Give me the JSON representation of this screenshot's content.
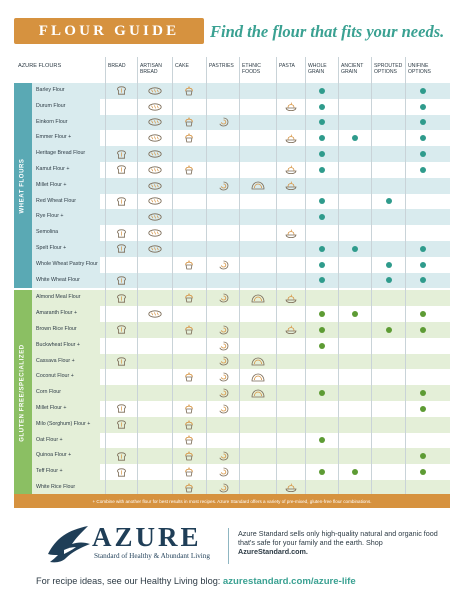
{
  "header": {
    "title": "FLOUR GUIDE",
    "tagline": "Find the flour that fits your needs."
  },
  "table": {
    "first_column_header": "AZURE FLOURS",
    "columns": [
      "BREAD",
      "ARTISAN BREAD",
      "CAKE",
      "PASTRIES",
      "ETHNIC FOODS",
      "PASTA",
      "WHOLE GRAIN",
      "ANCIENT GRAIN",
      "SPROUTED OPTIONS",
      "UNIFINE OPTIONS"
    ],
    "groups": [
      {
        "label": "WHEAT FLOURS",
        "color": "#5aa9b4",
        "band": "#d9ebee",
        "dot": "#2f9b8c",
        "rows": [
          {
            "name": "Barley Flour",
            "marks": [
              1,
              1,
              1,
              0,
              0,
              0,
              1,
              0,
              0,
              1
            ]
          },
          {
            "name": "Durum Flour",
            "marks": [
              0,
              1,
              0,
              0,
              0,
              1,
              1,
              0,
              0,
              1
            ]
          },
          {
            "name": "Einkorn Flour",
            "marks": [
              0,
              1,
              1,
              1,
              0,
              0,
              1,
              0,
              0,
              1
            ]
          },
          {
            "name": "Emmer Flour +",
            "marks": [
              0,
              1,
              1,
              0,
              0,
              1,
              1,
              1,
              0,
              1
            ]
          },
          {
            "name": "Heritage Bread Flour",
            "marks": [
              1,
              1,
              0,
              0,
              0,
              0,
              1,
              0,
              0,
              1
            ]
          },
          {
            "name": "Kamut Flour +",
            "marks": [
              1,
              1,
              1,
              0,
              0,
              1,
              1,
              0,
              0,
              1
            ]
          },
          {
            "name": "Millet Flour +",
            "marks": [
              0,
              1,
              0,
              1,
              1,
              1,
              0,
              0,
              0,
              0
            ]
          },
          {
            "name": "Red Wheat Flour",
            "marks": [
              1,
              1,
              0,
              0,
              0,
              0,
              1,
              0,
              1,
              0
            ]
          },
          {
            "name": "Rye Flour +",
            "marks": [
              0,
              1,
              0,
              0,
              0,
              0,
              1,
              0,
              0,
              0
            ]
          },
          {
            "name": "Semolina",
            "marks": [
              1,
              1,
              0,
              0,
              0,
              1,
              0,
              0,
              0,
              0
            ]
          },
          {
            "name": "Spelt Flour +",
            "marks": [
              1,
              1,
              0,
              0,
              0,
              0,
              1,
              1,
              0,
              1
            ]
          },
          {
            "name": "Whole Wheat Pastry Flour",
            "marks": [
              0,
              0,
              1,
              1,
              0,
              0,
              1,
              0,
              1,
              1
            ]
          },
          {
            "name": "White Wheat Flour",
            "marks": [
              1,
              0,
              0,
              0,
              0,
              0,
              1,
              0,
              1,
              1
            ]
          }
        ]
      },
      {
        "label": "GLUTEN FREE/SPECIALIZED",
        "color": "#8bbf63",
        "band": "#e4efd8",
        "dot": "#5d9b34",
        "rows": [
          {
            "name": "Almond Meal Flour",
            "marks": [
              1,
              0,
              1,
              1,
              1,
              1,
              0,
              0,
              0,
              0
            ]
          },
          {
            "name": "Amaranth Flour +",
            "marks": [
              0,
              1,
              0,
              0,
              0,
              0,
              1,
              1,
              0,
              1
            ]
          },
          {
            "name": "Brown Rice Flour",
            "marks": [
              1,
              0,
              1,
              1,
              0,
              1,
              1,
              0,
              1,
              1
            ]
          },
          {
            "name": "Buckwheat Flour +",
            "marks": [
              0,
              0,
              0,
              1,
              0,
              0,
              1,
              0,
              0,
              0
            ]
          },
          {
            "name": "Cassava Flour +",
            "marks": [
              1,
              0,
              0,
              1,
              1,
              0,
              0,
              0,
              0,
              0
            ]
          },
          {
            "name": "Coconut Flour +",
            "marks": [
              0,
              0,
              1,
              1,
              1,
              0,
              0,
              0,
              0,
              0
            ]
          },
          {
            "name": "Corn Flour",
            "marks": [
              0,
              0,
              0,
              1,
              1,
              0,
              1,
              0,
              0,
              1
            ]
          },
          {
            "name": "Millet Flour +",
            "marks": [
              1,
              0,
              1,
              1,
              0,
              0,
              0,
              0,
              0,
              1
            ]
          },
          {
            "name": "Milo (Sorghum) Flour +",
            "marks": [
              1,
              0,
              1,
              0,
              0,
              0,
              0,
              0,
              0,
              0
            ]
          },
          {
            "name": "Oat Flour +",
            "marks": [
              0,
              0,
              1,
              0,
              0,
              0,
              1,
              0,
              0,
              0
            ]
          },
          {
            "name": "Quinoa Flour +",
            "marks": [
              1,
              0,
              1,
              1,
              0,
              0,
              0,
              0,
              0,
              1
            ]
          },
          {
            "name": "Teff Flour +",
            "marks": [
              1,
              0,
              1,
              1,
              0,
              0,
              1,
              1,
              0,
              1
            ]
          },
          {
            "name": "White Rice Flour",
            "marks": [
              0,
              0,
              1,
              1,
              0,
              1,
              0,
              0,
              0,
              0
            ]
          }
        ]
      }
    ],
    "icon_names": [
      "bread-icon",
      "artisan-bread-icon",
      "cake-icon",
      "pastries-icon",
      "ethnic-foods-icon",
      "pasta-icon"
    ]
  },
  "footnote": "+ Combine with another flour for best results in most recipes. Azure Standard offers a variety of pre-mixed, gluten-free flour combinations.",
  "logo": {
    "word": "AZURE",
    "tagline": "Standard of Healthy & Abundant Living"
  },
  "blurb": {
    "text": "Azure Standard sells only high-quality natural and organic food that's safe for your family and the earth. Shop ",
    "link": "AzureStandard.com."
  },
  "blog": {
    "text": "For recipe ideas, see our Healthy Living blog: ",
    "link": "azurestandard.com/azure-life"
  },
  "colors": {
    "accent_orange": "#d6923f",
    "accent_teal": "#3aa192",
    "navy": "#1f3e57"
  }
}
